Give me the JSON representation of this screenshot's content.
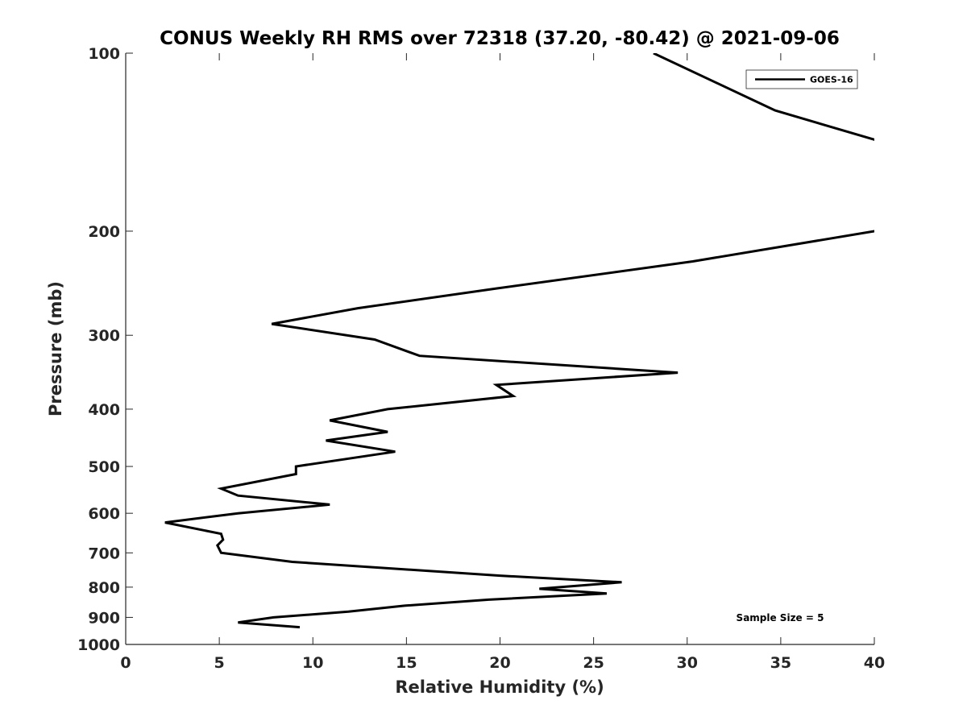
{
  "chart_data": {
    "type": "line",
    "title": "CONUS Weekly RH RMS over 72318 (37.20, -80.42) @ 2021-09-06",
    "xlabel": "Relative Humidity (%)",
    "ylabel": "Pressure (mb)",
    "xlim": [
      0,
      40
    ],
    "ylim": [
      1000,
      100
    ],
    "yscale": "log",
    "y_reversed": true,
    "grid": false,
    "legend_position": "top-right",
    "x_ticks": [
      0,
      5,
      10,
      15,
      20,
      25,
      30,
      35,
      40
    ],
    "y_ticks": [
      100,
      200,
      300,
      400,
      500,
      600,
      700,
      800,
      900,
      1000
    ],
    "annotation": "Sample Size = 5",
    "series": [
      {
        "name": "GOES-16",
        "color": "#000000",
        "points": [
          [
            28.2,
            100
          ],
          [
            34.7,
            125
          ],
          [
            40.0,
            140
          ],
          [
            40.5,
            142
          ],
          [
            40.5,
            198
          ],
          [
            40.0,
            200
          ],
          [
            30.3,
            225
          ],
          [
            19.8,
            250
          ],
          [
            12.4,
            270
          ],
          [
            7.8,
            287
          ],
          [
            13.3,
            305
          ],
          [
            15.7,
            325
          ],
          [
            29.5,
            347
          ],
          [
            19.8,
            364
          ],
          [
            20.7,
            380
          ],
          [
            14.0,
            400
          ],
          [
            10.9,
            418
          ],
          [
            14.0,
            437
          ],
          [
            10.7,
            452
          ],
          [
            14.4,
            472
          ],
          [
            9.1,
            500
          ],
          [
            9.1,
            515
          ],
          [
            5.1,
            545
          ],
          [
            6.0,
            560
          ],
          [
            10.9,
            580
          ],
          [
            6.0,
            600
          ],
          [
            2.1,
            622
          ],
          [
            5.1,
            650
          ],
          [
            5.2,
            665
          ],
          [
            4.9,
            680
          ],
          [
            5.1,
            700
          ],
          [
            8.9,
            725
          ],
          [
            20.0,
            765
          ],
          [
            26.5,
            785
          ],
          [
            22.1,
            805
          ],
          [
            25.7,
            820
          ],
          [
            19.4,
            840
          ],
          [
            14.9,
            860
          ],
          [
            11.9,
            880
          ],
          [
            7.9,
            900
          ],
          [
            6.0,
            918
          ],
          [
            9.3,
            935
          ]
        ]
      }
    ]
  }
}
